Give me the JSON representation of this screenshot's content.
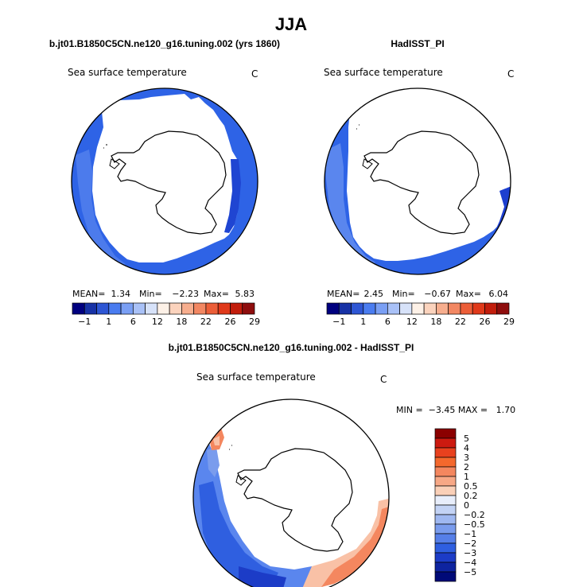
{
  "chart_data": {
    "type": "map",
    "title": "JJA",
    "colors": {
      "ocean_blue": "#2e63e6",
      "ocean_light": "#5a86ee",
      "ocean_dark": "#1d3fcf",
      "coast": "#000000",
      "diff_red": "#f4875f",
      "diff_light": "#f9c1a6"
    },
    "panels": [
      {
        "name": "model",
        "subtitle": "b.jt01.B1850C5CN.ne120_g16.tuning.002 (yrs 1860)",
        "variable": "Sea surface temperature",
        "units": "C",
        "stats": {
          "mean_label": "MEAN=",
          "mean": "1.34",
          "min_label": "Min=",
          "min": "−2.23",
          "max_label": "Max=",
          "max": "5.83"
        },
        "colorbar_labels": [
          "−1",
          "1",
          "6",
          "12",
          "18",
          "22",
          "26",
          "29"
        ]
      },
      {
        "name": "obs",
        "subtitle": "HadISST_PI",
        "variable": "Sea surface temperature",
        "units": "C",
        "stats": {
          "mean_label": "MEAN=",
          "mean": "2.45",
          "min_label": "Min=",
          "min": "−0.67",
          "max_label": "Max=",
          "max": "6.04"
        },
        "colorbar_labels": [
          "−1",
          "1",
          "6",
          "12",
          "18",
          "22",
          "26",
          "29"
        ]
      },
      {
        "name": "difference",
        "subtitle": "b.jt01.B1850C5CN.ne120_g16.tuning.002 - HadISST_PI",
        "variable": "Sea surface temperature",
        "units": "C",
        "minmax_text": "MIN =  −3.45 MAX =   1.70",
        "colorbar_labels": [
          "5",
          "4",
          "3",
          "2",
          "1",
          "0.5",
          "0.2",
          "0",
          "−0.2",
          "−0.5",
          "−1",
          "−2",
          "−3",
          "−4",
          "−5"
        ]
      }
    ],
    "abs_colorbar_colors": [
      "#00007f",
      "#1732a6",
      "#2e56d4",
      "#4a7cf0",
      "#7a9ff4",
      "#a9c1f7",
      "#d7e2f9",
      "#fdf1e7",
      "#fbd3bd",
      "#f7ae8e",
      "#f28762",
      "#ec5e38",
      "#e0391a",
      "#c21d0c",
      "#8e0d0d"
    ],
    "diff_colorbar_colors": [
      "#8b0000",
      "#cc1a10",
      "#e8411e",
      "#f4682d",
      "#f4875f",
      "#f7a886",
      "#fad0b8",
      "#e8eefb",
      "#c3d3f5",
      "#9fb8f1",
      "#7a9ced",
      "#567fe8",
      "#2f5fe0",
      "#1c3cc7",
      "#0e24a0",
      "#000a78"
    ]
  }
}
